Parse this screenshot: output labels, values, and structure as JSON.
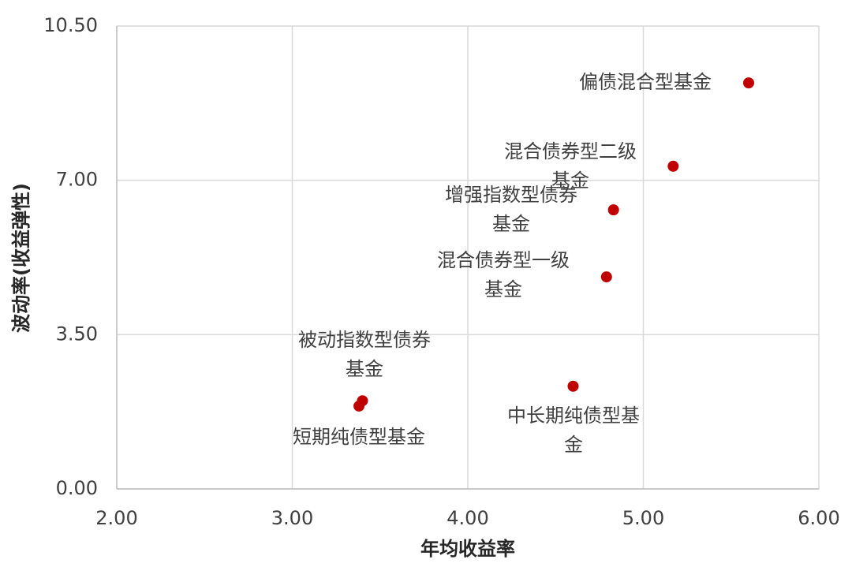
{
  "chart_data": {
    "type": "scatter",
    "x_label": "年均收益率",
    "y_label": "波动率(收益弹性)",
    "series": [
      {
        "color": "#c00000",
        "labels": [
          [
            "偏债混合型基金"
          ],
          [
            "混合债券型二级",
            "基金"
          ],
          [
            "增强指数型债券",
            "基金"
          ],
          [
            "混合债券型一级",
            "基金"
          ],
          [
            "被动指数型债券",
            "基金"
          ],
          [
            "短期纯债型基金"
          ],
          [
            "中长期纯债型基",
            "金"
          ]
        ],
        "x": [
          5.6,
          5.17,
          4.83,
          4.79,
          3.4,
          3.38,
          4.6
        ],
        "values": [
          9.21,
          7.32,
          6.33,
          4.81,
          2.0,
          1.88,
          2.33
        ]
      }
    ],
    "xlim": [
      2,
      6
    ],
    "ylim": [
      0,
      10.5
    ],
    "xticks": [
      {
        "value": 2,
        "label": "2.00"
      },
      {
        "value": 3,
        "label": "3.00"
      },
      {
        "value": 4,
        "label": "4.00"
      },
      {
        "value": 5,
        "label": "5.00"
      },
      {
        "value": 6,
        "label": "6.00"
      }
    ],
    "yticks": [
      {
        "value": 0,
        "label": "0.00"
      },
      {
        "value": 3.5,
        "label": "3.50"
      },
      {
        "value": 7,
        "label": "7.00"
      },
      {
        "value": 10.5,
        "label": "10.50"
      }
    ],
    "grid": true
  }
}
